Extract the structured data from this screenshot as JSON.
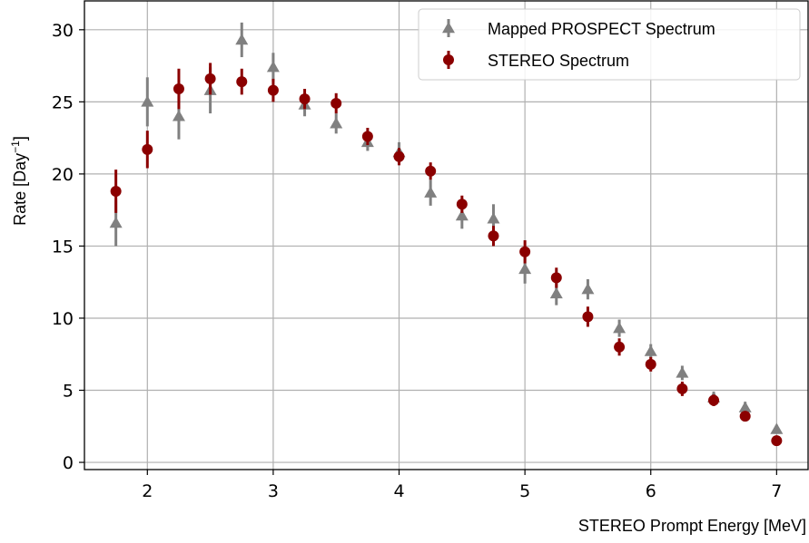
{
  "chart_data": {
    "type": "scatter",
    "xlabel": "STEREO Prompt Energy [MeV]",
    "ylabel_prefix": "Rate [Day",
    "ylabel_sup": "−1",
    "ylabel_suffix": "]",
    "xlim": [
      1.5,
      7.25
    ],
    "ylim": [
      -0.5,
      32
    ],
    "x_ticks": [
      2,
      3,
      4,
      5,
      6,
      7
    ],
    "y_ticks": [
      0,
      5,
      10,
      15,
      20,
      25,
      30
    ],
    "grid": true,
    "legend_position": "top-right",
    "series": [
      {
        "name": "Mapped PROSPECT Spectrum",
        "marker": "triangle",
        "color": "#808080",
        "points": [
          {
            "x": 1.75,
            "y": 16.6,
            "err": 1.6
          },
          {
            "x": 2.0,
            "y": 25.0,
            "err": 1.7
          },
          {
            "x": 2.25,
            "y": 24.0,
            "err": 1.6
          },
          {
            "x": 2.5,
            "y": 25.8,
            "err": 1.6
          },
          {
            "x": 2.75,
            "y": 29.3,
            "err": 1.2
          },
          {
            "x": 3.0,
            "y": 27.4,
            "err": 1.0
          },
          {
            "x": 3.25,
            "y": 24.8,
            "err": 0.8
          },
          {
            "x": 3.5,
            "y": 23.5,
            "err": 0.7
          },
          {
            "x": 3.75,
            "y": 22.2,
            "err": 0.6
          },
          {
            "x": 4.0,
            "y": 21.5,
            "err": 0.7
          },
          {
            "x": 4.25,
            "y": 18.7,
            "err": 0.9
          },
          {
            "x": 4.5,
            "y": 17.1,
            "err": 0.9
          },
          {
            "x": 4.75,
            "y": 16.9,
            "err": 1.0
          },
          {
            "x": 5.0,
            "y": 13.4,
            "err": 1.0
          },
          {
            "x": 5.25,
            "y": 11.7,
            "err": 0.8
          },
          {
            "x": 5.5,
            "y": 12.0,
            "err": 0.7
          },
          {
            "x": 5.75,
            "y": 9.3,
            "err": 0.6
          },
          {
            "x": 6.0,
            "y": 7.7,
            "err": 0.5
          },
          {
            "x": 6.25,
            "y": 6.2,
            "err": 0.5
          },
          {
            "x": 6.5,
            "y": 4.5,
            "err": 0.4
          },
          {
            "x": 6.75,
            "y": 3.8,
            "err": 0.4
          },
          {
            "x": 7.0,
            "y": 2.3,
            "err": 0.3
          }
        ]
      },
      {
        "name": "STEREO Spectrum",
        "marker": "circle",
        "color": "#8b0000",
        "points": [
          {
            "x": 1.75,
            "y": 18.8,
            "err": 1.5
          },
          {
            "x": 2.0,
            "y": 21.7,
            "err": 1.3
          },
          {
            "x": 2.25,
            "y": 25.9,
            "err": 1.4
          },
          {
            "x": 2.5,
            "y": 26.6,
            "err": 1.1
          },
          {
            "x": 2.75,
            "y": 26.4,
            "err": 0.9
          },
          {
            "x": 3.0,
            "y": 25.8,
            "err": 0.8
          },
          {
            "x": 3.25,
            "y": 25.2,
            "err": 0.7
          },
          {
            "x": 3.5,
            "y": 24.9,
            "err": 0.7
          },
          {
            "x": 3.75,
            "y": 22.6,
            "err": 0.6
          },
          {
            "x": 4.0,
            "y": 21.2,
            "err": 0.6
          },
          {
            "x": 4.25,
            "y": 20.2,
            "err": 0.6
          },
          {
            "x": 4.5,
            "y": 17.9,
            "err": 0.6
          },
          {
            "x": 4.75,
            "y": 15.7,
            "err": 0.7
          },
          {
            "x": 5.0,
            "y": 14.6,
            "err": 0.8
          },
          {
            "x": 5.25,
            "y": 12.8,
            "err": 0.7
          },
          {
            "x": 5.5,
            "y": 10.1,
            "err": 0.7
          },
          {
            "x": 5.75,
            "y": 8.0,
            "err": 0.6
          },
          {
            "x": 6.0,
            "y": 6.8,
            "err": 0.5
          },
          {
            "x": 6.25,
            "y": 5.1,
            "err": 0.5
          },
          {
            "x": 6.5,
            "y": 4.3,
            "err": 0.4
          },
          {
            "x": 6.75,
            "y": 3.2,
            "err": 0.3
          },
          {
            "x": 7.0,
            "y": 1.5,
            "err": 0.3
          }
        ]
      }
    ]
  }
}
